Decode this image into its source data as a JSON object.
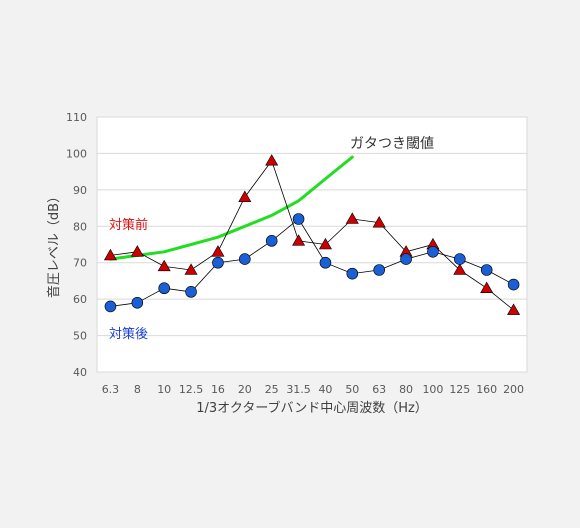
{
  "chart_data": {
    "type": "line",
    "title": "",
    "xlabel": "1/3オクターブバンド中心周波数（Hz）",
    "ylabel": "音圧レベル（dB）",
    "ylim": [
      40,
      110
    ],
    "yticks": [
      40,
      50,
      60,
      70,
      80,
      90,
      100,
      110
    ],
    "grid": true,
    "categories": [
      "6.3",
      "8",
      "10",
      "12.5",
      "16",
      "20",
      "25",
      "31.5",
      "40",
      "50",
      "63",
      "80",
      "100",
      "125",
      "160",
      "200"
    ],
    "series": [
      {
        "name": "対策前",
        "marker": "triangle",
        "color": "#cc0000",
        "values": [
          72,
          73,
          69,
          68,
          73,
          88,
          98,
          76,
          75,
          82,
          81,
          73,
          75,
          68,
          63,
          57
        ]
      },
      {
        "name": "対策後",
        "marker": "circle",
        "color": "#1a5fd6",
        "values": [
          58,
          59,
          63,
          62,
          70,
          71,
          76,
          82,
          70,
          67,
          68,
          71,
          73,
          71,
          68,
          64
        ]
      },
      {
        "name": "ガタつき閾値",
        "marker": "none",
        "color": "#22dd22",
        "values": [
          71,
          72,
          73,
          75,
          77,
          80,
          83,
          87,
          93,
          99,
          null,
          null,
          null,
          null,
          null,
          null
        ]
      }
    ],
    "annotations": {
      "before": "対策前",
      "after": "対策後",
      "threshold": "ガタつき閾値"
    },
    "colors": {
      "before": "#cc0000",
      "after": "#1a5fd6",
      "threshold": "#22dd22",
      "gridline": "#d9d9d9",
      "axis_text": "#595959",
      "before_label": "#dd1111",
      "after_label": "#1a3fd0"
    }
  }
}
